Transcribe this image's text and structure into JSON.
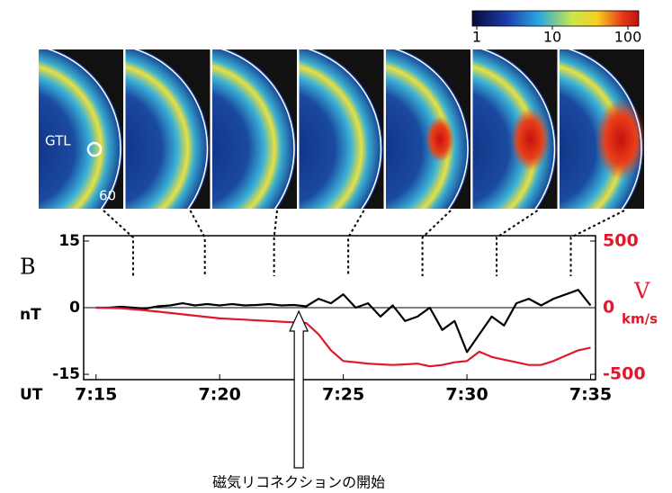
{
  "chart_data": {
    "type": "line",
    "colorbar": {
      "lim": [
        1,
        100
      ],
      "ticks": [
        1,
        10,
        100
      ],
      "log": true
    },
    "image_labels": {
      "station": "GTL",
      "latitude": "60"
    },
    "image_times": [
      436.5,
      439.4,
      442.2,
      445.2,
      448.2,
      451.2,
      454.2
    ],
    "y_label": "B",
    "y_unit": "nT",
    "y2_label": "V",
    "y2_unit": "km/s",
    "x_label": "UT",
    "x": [
      435,
      435.5,
      436,
      436.5,
      437,
      437.5,
      438,
      438.5,
      439,
      439.5,
      440,
      440.5,
      441,
      441.5,
      442,
      442.5,
      443,
      443.5,
      444,
      444.5,
      445,
      445.5,
      446,
      446.5,
      447,
      447.5,
      448,
      448.5,
      449,
      449.5,
      450,
      450.5,
      451,
      451.5,
      452,
      452.5,
      453,
      453.5,
      454,
      454.5,
      455
    ],
    "series": [
      {
        "name": "B",
        "color": "#000000",
        "values": [
          0,
          0,
          0.2,
          0,
          -0.2,
          0.3,
          0.5,
          1,
          0.5,
          0.8,
          0.5,
          0.8,
          0.5,
          0.6,
          0.8,
          0.5,
          0.6,
          0.3,
          2,
          1,
          3,
          0,
          1,
          -2,
          0.5,
          -3,
          -2,
          0,
          -5,
          -3,
          -10,
          -6,
          -2,
          -4,
          1,
          2,
          0.5,
          2,
          3,
          4,
          0.5
        ]
      },
      {
        "name": "V",
        "color": "#e0182d",
        "axis": "y2",
        "values": [
          0,
          -2,
          -5,
          -12,
          -20,
          -30,
          -40,
          -50,
          -60,
          -70,
          -80,
          -85,
          -90,
          -95,
          -100,
          -105,
          -110,
          -115,
          -200,
          -320,
          -400,
          -410,
          -420,
          -425,
          -430,
          -425,
          -420,
          -440,
          -430,
          -410,
          -400,
          -330,
          -370,
          -390,
          -410,
          -430,
          -430,
          -400,
          -360,
          -320,
          -300
        ]
      }
    ],
    "xlim": [
      434.5,
      455.2
    ],
    "xticks": [
      {
        "value": 435,
        "label": "7:15"
      },
      {
        "value": 440,
        "label": "7:20"
      },
      {
        "value": 445,
        "label": "7:25"
      },
      {
        "value": 450,
        "label": "7:30"
      },
      {
        "value": 455,
        "label": "7:35"
      }
    ],
    "ylim": [
      -16.2,
      16.2
    ],
    "yticks": [
      -15,
      0,
      15
    ],
    "y2lim": [
      -540,
      540
    ],
    "y2ticks": [
      -500,
      0,
      500
    ],
    "zero_line": true,
    "annotation": {
      "text": "磁気リコネクションの開始",
      "x": 443.2
    }
  }
}
